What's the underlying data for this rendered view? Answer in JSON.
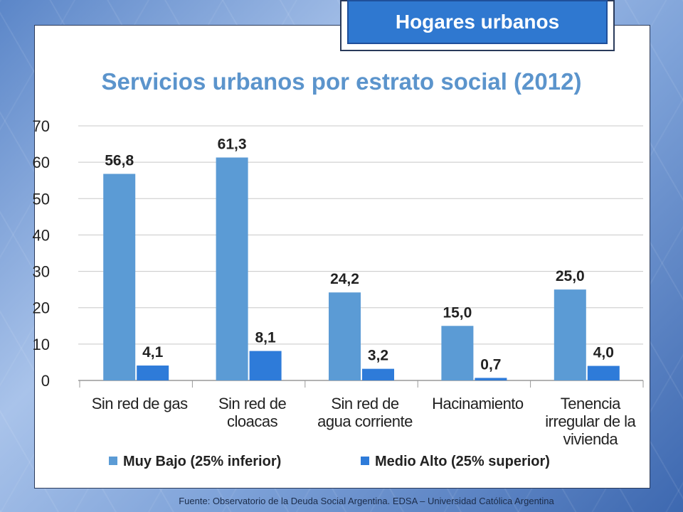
{
  "badge": "Hogares urbanos",
  "source": "Fuente: Observatorio de la Deuda Social Argentina. EDSA – Universidad Católica Argentina",
  "colors": {
    "series1": "#5b9bd5",
    "series2": "#2e7bd9",
    "badge_bg": "#2f78d0",
    "title": "#5b94cc"
  },
  "chart_data": {
    "type": "bar",
    "title": "Servicios urbanos por estrato social (2012)",
    "categories": [
      [
        "Sin red de gas"
      ],
      [
        "Sin red de",
        "cloacas"
      ],
      [
        "Sin red de",
        "agua corriente"
      ],
      [
        "Hacinamiento"
      ],
      [
        "Tenencia",
        "irregular de la",
        "vivienda"
      ]
    ],
    "series": [
      {
        "name": "Muy Bajo (25% inferior)",
        "values": [
          56.8,
          61.3,
          24.2,
          15.0,
          25.0
        ],
        "labels": [
          "56,8",
          "61,3",
          "24,2",
          "15,0",
          "25,0"
        ]
      },
      {
        "name": "Medio Alto (25% superior)",
        "values": [
          4.1,
          8.1,
          3.2,
          0.7,
          4.0
        ],
        "labels": [
          "4,1",
          "8,1",
          "3,2",
          "0,7",
          "4,0"
        ]
      }
    ],
    "ylim": [
      0,
      70
    ],
    "yticks": [
      0,
      10,
      20,
      30,
      40,
      50,
      60,
      70
    ],
    "grid": true,
    "legend": "bottom"
  }
}
